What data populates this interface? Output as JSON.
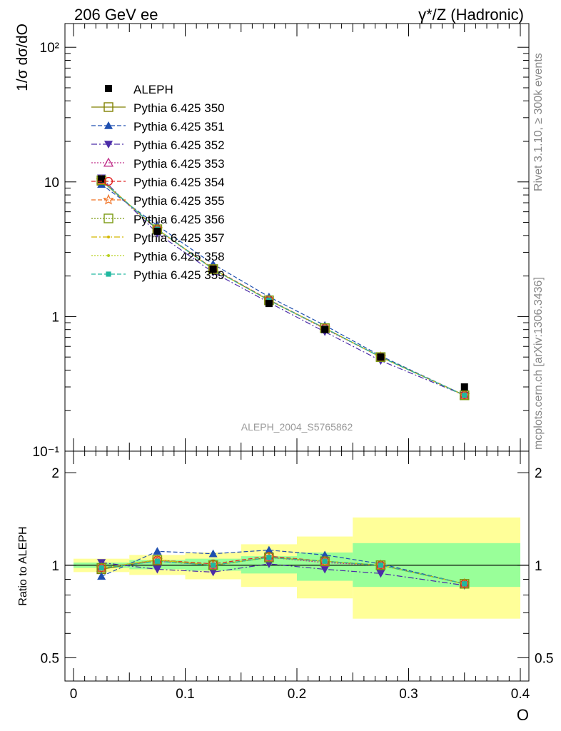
{
  "header": {
    "left": "206 GeV ee",
    "right": "γ*/Z (Hadronic)"
  },
  "side_labels": {
    "rivet": "Rivet 3.1.10, ≥ 300k events",
    "mcplots": "mcplots.cern.ch [arXiv:1306.3436]"
  },
  "chart_data": [
    {
      "type": "line",
      "panel": "main",
      "analysis_label": "ALEPH_2004_S5765862",
      "ylabel": "1/σ  dσ/dO",
      "xlim": [
        0,
        0.4
      ],
      "ylim": [
        0.1,
        150
      ],
      "yscale": "log",
      "yticks": [
        {
          "value": 0.1,
          "label": "10⁻¹"
        },
        {
          "value": 1,
          "label": "1"
        },
        {
          "value": 10,
          "label": "10"
        },
        {
          "value": 100,
          "label": "10²"
        }
      ],
      "legend_position": "upper-left",
      "x": [
        0.025,
        0.075,
        0.125,
        0.175,
        0.225,
        0.275,
        0.35
      ],
      "data": {
        "name": "ALEPH",
        "color": "#000000",
        "values": [
          10.5,
          4.3,
          2.25,
          1.25,
          0.8,
          0.5,
          0.3
        ]
      },
      "series": [
        {
          "name": "Pythia 6.425 350",
          "color": "#808000",
          "dash": "",
          "marker": "square-open",
          "values": [
            10.2,
            4.45,
            2.25,
            1.32,
            0.82,
            0.5,
            0.26
          ]
        },
        {
          "name": "Pythia 6.425 351",
          "color": "#1f4fb0",
          "dash": "6,3",
          "marker": "triangle-up",
          "values": [
            9.6,
            4.75,
            2.45,
            1.4,
            0.86,
            0.51,
            0.26
          ]
        },
        {
          "name": "Pythia 6.425 352",
          "color": "#4b2ca8",
          "dash": "8,3,2,3",
          "marker": "triangle-down",
          "values": [
            10.7,
            4.15,
            2.13,
            1.27,
            0.77,
            0.47,
            0.26
          ]
        },
        {
          "name": "Pythia 6.425 353",
          "color": "#c0308a",
          "dash": "2,2",
          "marker": "triangle-open",
          "values": [
            10.3,
            4.4,
            2.25,
            1.32,
            0.81,
            0.5,
            0.26
          ]
        },
        {
          "name": "Pythia 6.425 354",
          "color": "#e02020",
          "dash": "6,3",
          "marker": "circle-open",
          "values": [
            10.3,
            4.45,
            2.27,
            1.33,
            0.82,
            0.5,
            0.26
          ]
        },
        {
          "name": "Pythia 6.425 355",
          "color": "#f07020",
          "dash": "6,3",
          "marker": "star-open",
          "values": [
            10.3,
            4.45,
            2.25,
            1.32,
            0.82,
            0.5,
            0.26
          ]
        },
        {
          "name": "Pythia 6.425 356",
          "color": "#7a9a10",
          "dash": "2,2",
          "marker": "square-open",
          "values": [
            10.3,
            4.45,
            2.25,
            1.32,
            0.82,
            0.5,
            0.26
          ]
        },
        {
          "name": "Pythia 6.425 357",
          "color": "#d4b800",
          "dash": "8,3,2,3",
          "marker": "dot",
          "values": [
            10.3,
            4.45,
            2.25,
            1.32,
            0.82,
            0.5,
            0.26
          ]
        },
        {
          "name": "Pythia 6.425 358",
          "color": "#b8d020",
          "dash": "2,2",
          "marker": "dot",
          "values": [
            10.3,
            4.45,
            2.25,
            1.32,
            0.82,
            0.5,
            0.26
          ]
        },
        {
          "name": "Pythia 6.425 359",
          "color": "#20b8a0",
          "dash": "6,3",
          "marker": "square-filled",
          "values": [
            10.3,
            4.45,
            2.25,
            1.32,
            0.82,
            0.5,
            0.26
          ]
        }
      ]
    },
    {
      "type": "line",
      "panel": "ratio",
      "ylabel": "Ratio to ALEPH",
      "xlabel": "O",
      "xlim": [
        0,
        0.4
      ],
      "ylim": [
        0.42,
        2.35
      ],
      "yscale": "log",
      "yticks": [
        {
          "value": 0.5,
          "label": "0.5"
        },
        {
          "value": 1,
          "label": "1"
        },
        {
          "value": 2,
          "label": "2"
        }
      ],
      "xticks": [
        {
          "value": 0,
          "label": "0"
        },
        {
          "value": 0.1,
          "label": "0.1"
        },
        {
          "value": 0.2,
          "label": "0.2"
        },
        {
          "value": 0.3,
          "label": "0.3"
        },
        {
          "value": 0.4,
          "label": "0.4"
        }
      ],
      "bins": [
        {
          "lo": 0.0,
          "hi": 0.05,
          "stat": [
            0.98,
            1.02
          ],
          "total": [
            0.95,
            1.05
          ]
        },
        {
          "lo": 0.05,
          "hi": 0.1,
          "stat": [
            0.97,
            1.04
          ],
          "total": [
            0.93,
            1.08
          ]
        },
        {
          "lo": 0.1,
          "hi": 0.15,
          "stat": [
            0.96,
            1.05
          ],
          "total": [
            0.9,
            1.1
          ]
        },
        {
          "lo": 0.15,
          "hi": 0.2,
          "stat": [
            0.94,
            1.07
          ],
          "total": [
            0.85,
            1.17
          ]
        },
        {
          "lo": 0.2,
          "hi": 0.25,
          "stat": [
            0.89,
            1.1
          ],
          "total": [
            0.78,
            1.24
          ]
        },
        {
          "lo": 0.25,
          "hi": 0.4,
          "stat": [
            0.85,
            1.18
          ],
          "total": [
            0.67,
            1.43
          ]
        }
      ],
      "x": [
        0.025,
        0.075,
        0.125,
        0.175,
        0.225,
        0.275,
        0.35
      ],
      "series": [
        {
          "name": "Pythia 6.425 350",
          "values": [
            0.97,
            1.04,
            1.0,
            1.06,
            1.03,
            1.0,
            0.87
          ]
        },
        {
          "name": "Pythia 6.425 351",
          "values": [
            0.92,
            1.11,
            1.09,
            1.12,
            1.08,
            1.01,
            0.87
          ]
        },
        {
          "name": "Pythia 6.425 352",
          "values": [
            1.02,
            0.97,
            0.95,
            1.01,
            0.97,
            0.94,
            0.86
          ]
        },
        {
          "name": "Pythia 6.425 353",
          "values": [
            0.98,
            1.03,
            1.0,
            1.06,
            1.02,
            1.0,
            0.87
          ]
        },
        {
          "name": "Pythia 6.425 354",
          "values": [
            0.98,
            1.04,
            1.01,
            1.07,
            1.03,
            1.0,
            0.87
          ]
        },
        {
          "name": "Pythia 6.425 355",
          "values": [
            0.98,
            1.04,
            1.0,
            1.06,
            1.03,
            1.0,
            0.87
          ]
        },
        {
          "name": "Pythia 6.425 356",
          "values": [
            0.98,
            1.04,
            1.0,
            1.06,
            1.03,
            1.0,
            0.87
          ]
        },
        {
          "name": "Pythia 6.425 357",
          "values": [
            0.98,
            1.04,
            1.0,
            1.06,
            1.03,
            1.0,
            0.87
          ]
        },
        {
          "name": "Pythia 6.425 358",
          "values": [
            0.98,
            1.04,
            1.0,
            1.06,
            1.03,
            1.0,
            0.87
          ]
        },
        {
          "name": "Pythia 6.425 359",
          "values": [
            0.98,
            1.03,
            1.0,
            1.06,
            1.03,
            1.0,
            0.87
          ]
        }
      ]
    }
  ]
}
